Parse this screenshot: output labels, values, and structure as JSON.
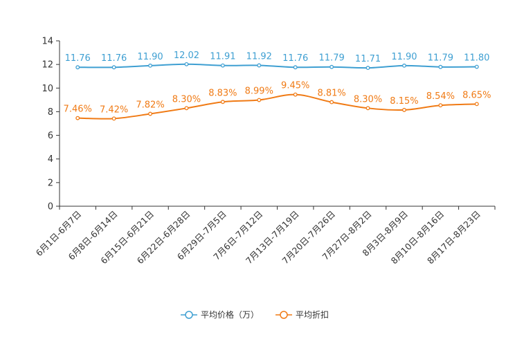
{
  "chart_data": {
    "type": "line",
    "categories": [
      "6月1日-6月7日",
      "6月8日-6月14日",
      "6月15日-6月21日",
      "6月22日-6月28日",
      "6月29日-7月5日",
      "7月6日-7月12日",
      "7月13日-7月19日",
      "7月20日-7月26日",
      "7月27日-8月2日",
      "8月3日-8月9日",
      "8月10日-8月16日",
      "8月17日-8月23日"
    ],
    "ylim": [
      0,
      14
    ],
    "yticks": [
      0,
      2,
      4,
      6,
      8,
      10,
      12,
      14
    ],
    "series": [
      {
        "name": "平均价格（万）",
        "color": "#3e9fd2",
        "values": [
          11.76,
          11.76,
          11.9,
          12.02,
          11.91,
          11.92,
          11.76,
          11.79,
          11.71,
          11.9,
          11.79,
          11.8
        ],
        "labels": [
          "11.76",
          "11.76",
          "11.90",
          "12.02",
          "11.91",
          "11.92",
          "11.76",
          "11.79",
          "11.71",
          "11.90",
          "11.79",
          "11.80"
        ]
      },
      {
        "name": "平均折扣",
        "color": "#f07a14",
        "values": [
          7.46,
          7.42,
          7.82,
          8.3,
          8.83,
          8.99,
          9.45,
          8.81,
          8.3,
          8.15,
          8.54,
          8.65
        ],
        "labels": [
          "7.46%",
          "7.42%",
          "7.82%",
          "8.30%",
          "8.83%",
          "8.99%",
          "9.45%",
          "8.81%",
          "8.30%",
          "8.15%",
          "8.54%",
          "8.65%"
        ]
      }
    ],
    "legend_position": "bottom-center"
  }
}
